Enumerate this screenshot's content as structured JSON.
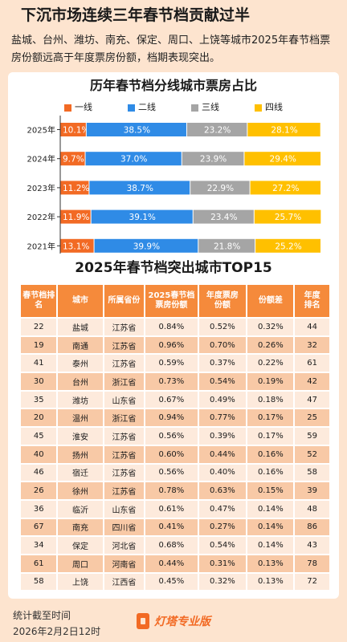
{
  "header": {
    "title": "下沉市场连续三年春节档贡献过半",
    "subtitle": "盐城、台州、潍坊、南充、保定、周口、上饶等城市2025年春节档票房份额远高于年度票房份额，档期表现突出。"
  },
  "chart_data": [
    {
      "type": "bar",
      "orientation": "horizontal",
      "stacked": true,
      "title": "历年春节档分线城市票房占比",
      "categories": [
        "2025年",
        "2024年",
        "2023年",
        "2022年",
        "2021年"
      ],
      "series": [
        {
          "name": "一线",
          "color": "#f26a24",
          "values": [
            10.1,
            9.7,
            11.2,
            11.9,
            13.1
          ],
          "labels": [
            "10.1%",
            "9.7%",
            "11.2%",
            "11.9%",
            "13.1%"
          ]
        },
        {
          "name": "二线",
          "color": "#2f8be6",
          "values": [
            38.5,
            37.0,
            38.7,
            39.1,
            39.9
          ],
          "labels": [
            "38.5%",
            "37.0%",
            "38.7%",
            "39.1%",
            "39.9%"
          ]
        },
        {
          "name": "三线",
          "color": "#a5a5a5",
          "values": [
            23.2,
            23.9,
            22.9,
            23.4,
            21.8
          ],
          "labels": [
            "23.2%",
            "23.9%",
            "22.9%",
            "23.4%",
            "21.8%"
          ]
        },
        {
          "name": "四线",
          "color": "#ffc000",
          "values": [
            28.1,
            29.4,
            27.2,
            25.7,
            25.2
          ],
          "labels": [
            "28.1%",
            "29.4%",
            "27.2%",
            "25.7%",
            "25.2%"
          ]
        }
      ],
      "xlim": [
        0,
        100
      ],
      "legend_position": "top"
    },
    {
      "type": "table",
      "title": "2025年春节档突出城市TOP15",
      "columns": [
        "春节档排名",
        "城市",
        "所属省份",
        "2025春节档票房份额",
        "年度票房份额",
        "份额差",
        "年度排名"
      ],
      "rows": [
        [
          "22",
          "盐城",
          "江苏省",
          "0.84%",
          "0.52%",
          "0.32%",
          "44"
        ],
        [
          "19",
          "南通",
          "江苏省",
          "0.96%",
          "0.70%",
          "0.26%",
          "32"
        ],
        [
          "41",
          "泰州",
          "江苏省",
          "0.59%",
          "0.37%",
          "0.22%",
          "61"
        ],
        [
          "30",
          "台州",
          "浙江省",
          "0.73%",
          "0.54%",
          "0.19%",
          "42"
        ],
        [
          "35",
          "潍坊",
          "山东省",
          "0.67%",
          "0.49%",
          "0.18%",
          "47"
        ],
        [
          "20",
          "温州",
          "浙江省",
          "0.94%",
          "0.77%",
          "0.17%",
          "25"
        ],
        [
          "45",
          "淮安",
          "江苏省",
          "0.56%",
          "0.39%",
          "0.17%",
          "59"
        ],
        [
          "40",
          "扬州",
          "江苏省",
          "0.60%",
          "0.44%",
          "0.16%",
          "52"
        ],
        [
          "46",
          "宿迁",
          "江苏省",
          "0.56%",
          "0.40%",
          "0.16%",
          "58"
        ],
        [
          "26",
          "徐州",
          "江苏省",
          "0.78%",
          "0.63%",
          "0.15%",
          "39"
        ],
        [
          "36",
          "临沂",
          "山东省",
          "0.61%",
          "0.47%",
          "0.14%",
          "48"
        ],
        [
          "67",
          "南充",
          "四川省",
          "0.41%",
          "0.27%",
          "0.14%",
          "86"
        ],
        [
          "34",
          "保定",
          "河北省",
          "0.68%",
          "0.54%",
          "0.14%",
          "43"
        ],
        [
          "61",
          "周口",
          "河南省",
          "0.44%",
          "0.31%",
          "0.13%",
          "78"
        ],
        [
          "58",
          "上饶",
          "江西省",
          "0.45%",
          "0.32%",
          "0.13%",
          "72"
        ]
      ]
    }
  ],
  "table_header_lines": [
    [
      "春节档排",
      "名"
    ],
    [
      "城市"
    ],
    [
      "所属省份"
    ],
    [
      "2025春节档",
      "票房份额"
    ],
    [
      "年度票房",
      "份额"
    ],
    [
      "份额差"
    ],
    [
      "年度",
      "排名"
    ]
  ],
  "footer": {
    "note_label": "统计截至时间",
    "note_date": "2026年2月2日12时",
    "brand": "灯塔专业版"
  }
}
